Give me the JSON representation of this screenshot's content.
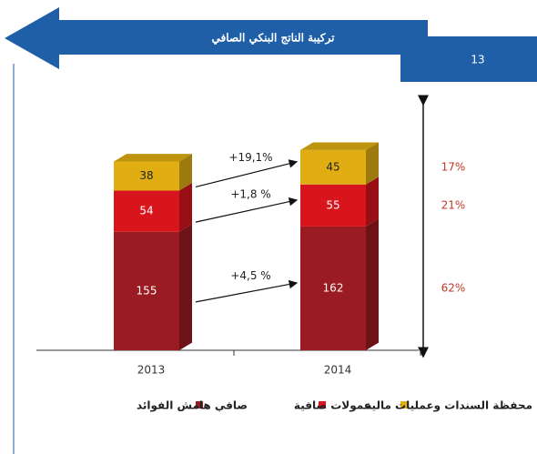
{
  "page_number": "13",
  "chart_data": {
    "type": "stacked-bar-3d",
    "title": "تركيبة الناتج البنكي الصافي",
    "categories": [
      "2013",
      "2014"
    ],
    "series": [
      {
        "name": "صافي هامش الفوائد",
        "color": "#9b1b22",
        "values": [
          155,
          162
        ],
        "growth": "+4,5 %",
        "share": "62%"
      },
      {
        "name": "عمولات صافية",
        "color": "#d8141c",
        "values": [
          54,
          55
        ],
        "growth": "+1,8 %",
        "share": "21%"
      },
      {
        "name": "محفظة السندات وعمليات مالية",
        "color": "#e0ae12",
        "values": [
          38,
          45
        ],
        "growth": "+19,1%",
        "share": "17%"
      }
    ]
  }
}
